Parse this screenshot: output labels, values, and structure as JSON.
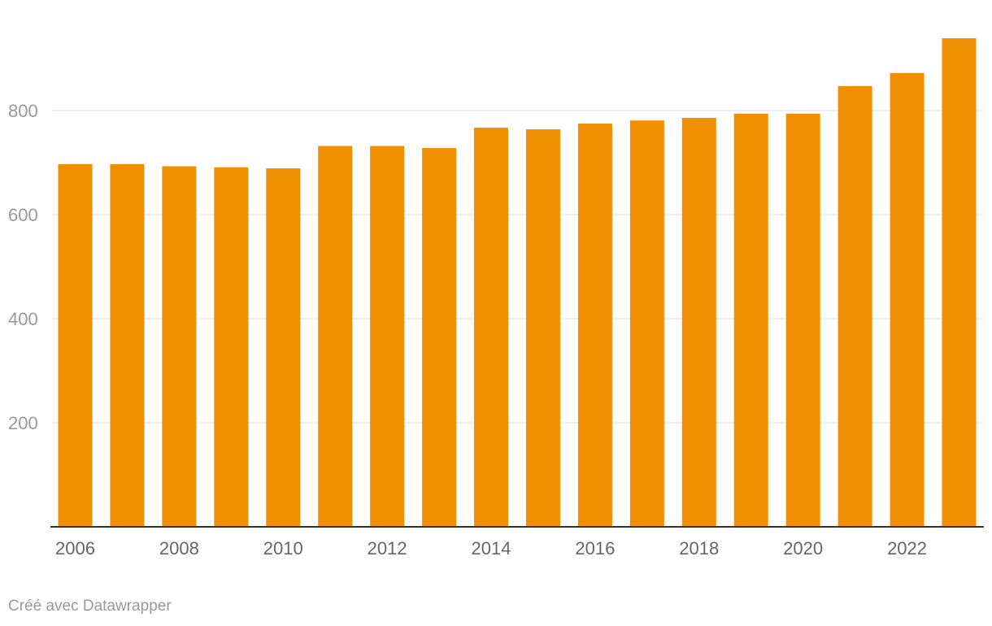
{
  "chart_data": {
    "type": "bar",
    "categories": [
      "2006",
      "2007",
      "2008",
      "2009",
      "2010",
      "2011",
      "2012",
      "2013",
      "2014",
      "2015",
      "2016",
      "2017",
      "2018",
      "2019",
      "2020",
      "2021",
      "2022",
      "2023"
    ],
    "values": [
      697,
      697,
      693,
      691,
      689,
      732,
      732,
      728,
      767,
      764,
      775,
      781,
      786,
      794,
      794,
      847,
      872,
      939
    ],
    "x_tick_labels": [
      "2006",
      "2008",
      "2010",
      "2012",
      "2014",
      "2016",
      "2018",
      "2020",
      "2022"
    ],
    "y_ticks": [
      200,
      400,
      600,
      800
    ],
    "ylim": [
      0,
      939
    ],
    "title": "",
    "xlabel": "",
    "ylabel": "",
    "grid": true,
    "legend": "none",
    "bar_color": "#f09000"
  },
  "footer": {
    "credit": "Créé avec Datawrapper"
  }
}
